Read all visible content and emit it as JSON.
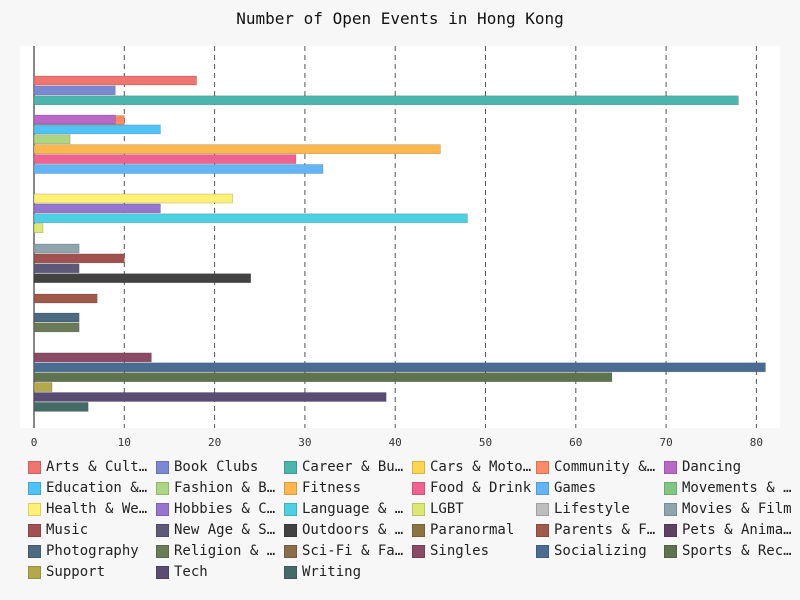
{
  "chart_data": {
    "type": "bar",
    "orientation": "horizontal",
    "title": "Number of Open Events in Hong Kong",
    "xlabel": "",
    "ylabel": "",
    "xlim": [
      0,
      82
    ],
    "x_ticks": [
      0,
      10,
      20,
      30,
      40,
      50,
      60,
      70,
      80
    ],
    "grid": "vertical dashed",
    "legend_position": "bottom",
    "series": [
      {
        "name": "Arts & Culture",
        "color": "#f07470",
        "value": 18
      },
      {
        "name": "Book Clubs",
        "color": "#7b88d2",
        "value": 9
      },
      {
        "name": "Career & Business",
        "color": "#4db6ac",
        "value": 78
      },
      {
        "name": "Cars & Motorcycles",
        "color": "#ffd54f",
        "value": 0
      },
      {
        "name": "Community & Environment",
        "color": "#ff8a65",
        "value": 10
      },
      {
        "name": "Dancing",
        "color": "#ba68c8",
        "value": 9
      },
      {
        "name": "Education & Learning",
        "color": "#4fc3f7",
        "value": 14
      },
      {
        "name": "Fashion & Beauty",
        "color": "#aed581",
        "value": 4
      },
      {
        "name": "Fitness",
        "color": "#ffb74d",
        "value": 45
      },
      {
        "name": "Food & Drink",
        "color": "#f06292",
        "value": 29
      },
      {
        "name": "Games",
        "color": "#64b5f6",
        "value": 32
      },
      {
        "name": "Movements & Politics",
        "color": "#81c784",
        "value": 0
      },
      {
        "name": "Health & Wellbeing",
        "color": "#fff176",
        "value": 22
      },
      {
        "name": "Hobbies & Crafts",
        "color": "#9575cd",
        "value": 14
      },
      {
        "name": "Language & Ethnic Identity",
        "color": "#4dd0e1",
        "value": 48
      },
      {
        "name": "LGBT",
        "color": "#dce775",
        "value": 1
      },
      {
        "name": "Lifestyle",
        "color": "#bdbdbd",
        "value": 0
      },
      {
        "name": "Movies & Film",
        "color": "#90a4ae",
        "value": 5
      },
      {
        "name": "Music",
        "color": "#a1514f",
        "value": 10
      },
      {
        "name": "New Age & Spirituality",
        "color": "#5c5a78",
        "value": 5
      },
      {
        "name": "Outdoors & Adventure",
        "color": "#424242",
        "value": 24
      },
      {
        "name": "Paranormal",
        "color": "#8b7342",
        "value": 0
      },
      {
        "name": "Parents & Family",
        "color": "#a05a4a",
        "value": 7
      },
      {
        "name": "Pets & Animals",
        "color": "#5d4361",
        "value": 0
      },
      {
        "name": "Photography",
        "color": "#4c6b80",
        "value": 5
      },
      {
        "name": "Religion & Beliefs",
        "color": "#6b7a57",
        "value": 5
      },
      {
        "name": "Sci-Fi & Fantasy",
        "color": "#8a6d4b",
        "value": 0
      },
      {
        "name": "Singles",
        "color": "#8b4a66",
        "value": 13
      },
      {
        "name": "Socializing",
        "color": "#4a6c93",
        "value": 81
      },
      {
        "name": "Sports & Recreation",
        "color": "#5e7350",
        "value": 64
      },
      {
        "name": "Support",
        "color": "#b3a84a",
        "value": 2
      },
      {
        "name": "Tech",
        "color": "#5a4d73",
        "value": 39
      },
      {
        "name": "Writing",
        "color": "#456b68",
        "value": 6
      }
    ],
    "legend_labels": [
      "Arts & Cultu…",
      "Book Clubs",
      "Career & Bus…",
      "Cars & Motor…",
      "Community & …",
      "Dancing",
      "Education & …",
      "Fashion & Be…",
      "Fitness",
      "Food & Drink",
      "Games",
      "Movements & …",
      "Health & Wel…",
      "Hobbies & Cr…",
      "Language & E…",
      "LGBT",
      "Lifestyle",
      "Movies & Film",
      "Music",
      "New Age & Sp…",
      "Outdoors & A…",
      "Paranormal",
      "Parents & Fa…",
      "Pets & Anima…",
      "Photography",
      "Religion & B…",
      "Sci-Fi & Fan…",
      "Singles",
      "Socializing",
      "Sports & Rec…",
      "Support",
      "Tech",
      "Writing"
    ]
  }
}
